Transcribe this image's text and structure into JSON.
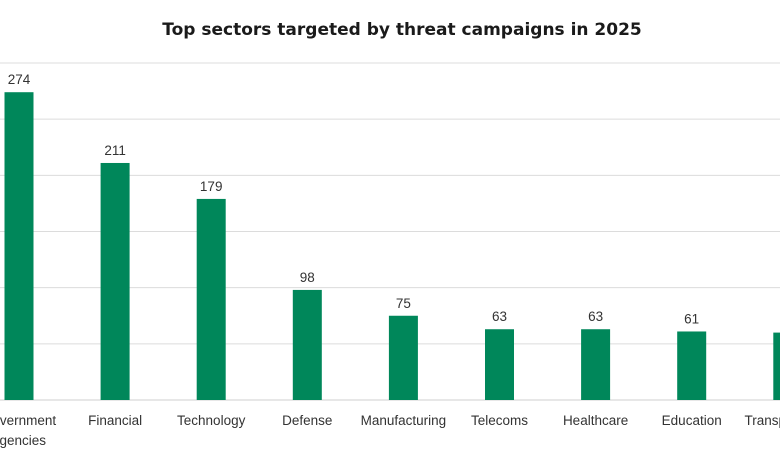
{
  "chart_data": {
    "type": "bar",
    "title": "Top sectors targeted by threat campaigns in 2025",
    "categories": [
      "Government agencies",
      "Financial",
      "Technology",
      "Defense",
      "Manufacturing",
      "Telecoms",
      "Healthcare",
      "Education",
      "Transportation"
    ],
    "values": [
      274,
      211,
      179,
      98,
      75,
      63,
      63,
      61,
      60
    ],
    "data_labels": [
      "274",
      "211",
      "179",
      "98",
      "75",
      "63",
      "63",
      "61",
      ""
    ],
    "xlabel": "",
    "ylabel": "",
    "ylim": [
      0,
      300
    ],
    "grid": true,
    "legend": "none",
    "bar_color": "#00875A"
  }
}
